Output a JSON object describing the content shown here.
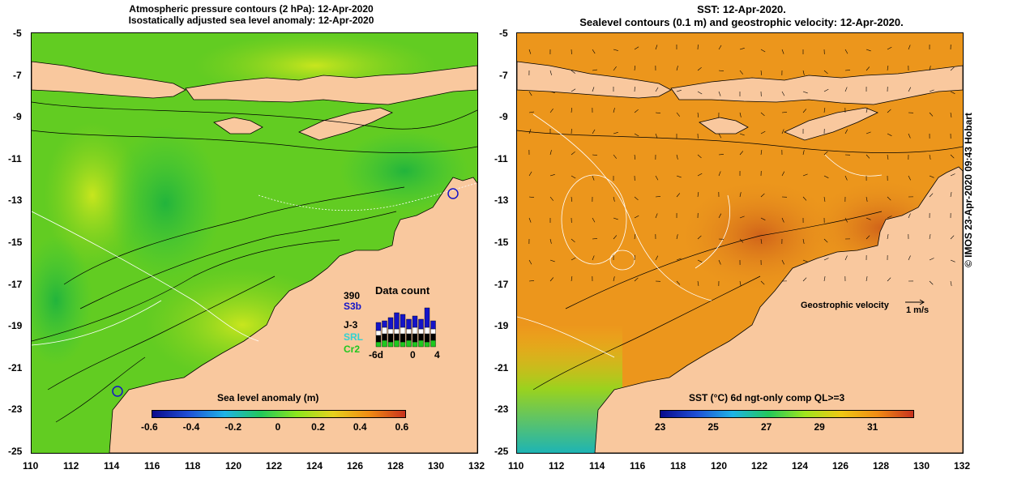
{
  "left_panel": {
    "title_line1": "Atmospheric pressure contours (2 hPa): 12-Apr-2020",
    "title_line2": "Isostatically adjusted sea level anomaly: 12-Apr-2020",
    "colorbar": {
      "label": "Sea level anomaly (m)",
      "ticks": [
        "-0.6",
        "-0.4",
        "-0.2",
        "0",
        "0.2",
        "0.4",
        "0.6"
      ],
      "colors": [
        "#0a0a8c",
        "#1f4fd6",
        "#1fb3e6",
        "#22c85a",
        "#8ce61e",
        "#e6d21e",
        "#f08c14",
        "#c8321e"
      ]
    },
    "data_count": {
      "title": "Data count",
      "max": "390",
      "satellites": [
        "S3b",
        "J-3",
        "SRL",
        "Cr2"
      ],
      "satellite_colors": [
        "#1414c8",
        "#000000",
        "#32d2d2",
        "#1ec81e"
      ],
      "x_ticks": [
        "-6d",
        "0",
        "4"
      ]
    }
  },
  "right_panel": {
    "title_line1": "SST: 12-Apr-2020.",
    "title_line2": "Sealevel contours (0.1 m) and geostrophic velocity: 12-Apr-2020.",
    "colorbar": {
      "label": "SST (°C) 6d ngt-only comp QL>=3",
      "ticks": [
        "23",
        "25",
        "27",
        "29",
        "31"
      ],
      "colors": [
        "#0a0a8c",
        "#1f4fd6",
        "#1fb3e6",
        "#22c85a",
        "#a0e61e",
        "#f0c814",
        "#f08c14",
        "#c8321e"
      ]
    },
    "velocity_legend": {
      "label": "Geostrophic velocity",
      "scale": "1 m/s"
    }
  },
  "axes": {
    "x_ticks": [
      "110",
      "112",
      "114",
      "116",
      "118",
      "120",
      "122",
      "124",
      "126",
      "128",
      "130",
      "132"
    ],
    "y_ticks": [
      "-5",
      "-7",
      "-9",
      "-11",
      "-13",
      "-15",
      "-17",
      "-19",
      "-21",
      "-23",
      "-25"
    ]
  },
  "credit": "© IMOS 23-Apr-2020 09:43 Hobart",
  "colors": {
    "land": "#f9c89e",
    "ocean_sla": "#6fd21e",
    "ocean_sst": "#ee9a1a"
  }
}
